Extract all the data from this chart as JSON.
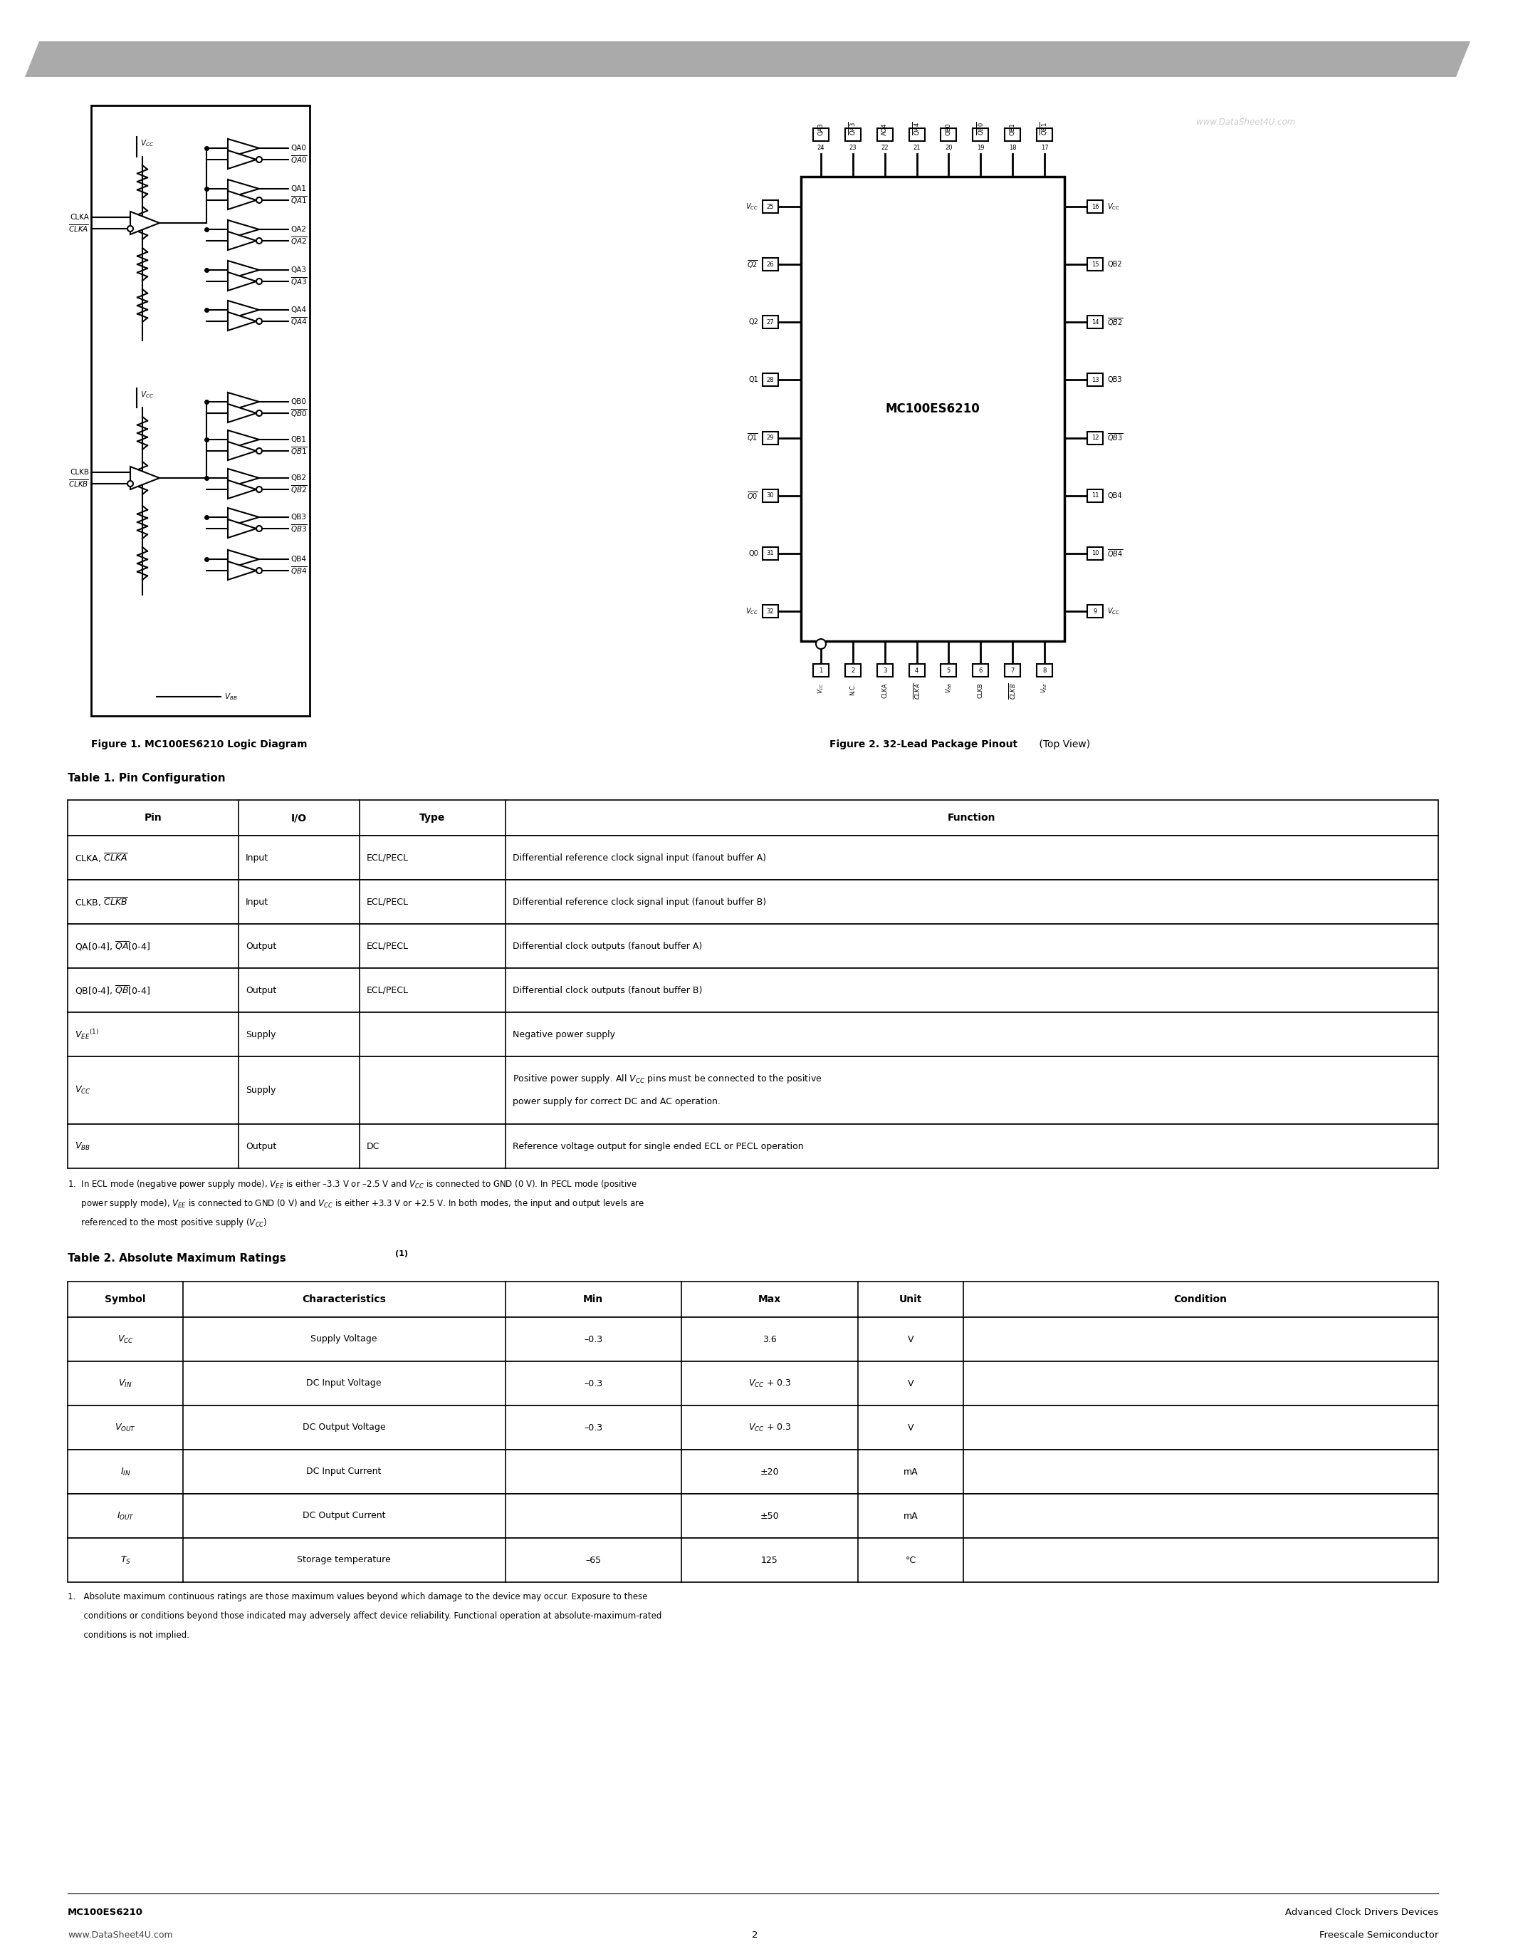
{
  "page_bg": "#ffffff",
  "watermark": "www.DataSheet4U.com",
  "fig1_caption": "Figure 1. MC100ES6210 Logic Diagram",
  "fig2_caption_bold": "Figure 2. 32-Lead Package Pinout",
  "fig2_caption_normal": " (Top View)",
  "table1_title": "Table 1. Pin Configuration",
  "table1_headers": [
    "Pin",
    "I/O",
    "Type",
    "Function"
  ],
  "table2_title": "Table 2. Absolute Maximum Ratings",
  "table2_title_super": "(1)",
  "table2_headers": [
    "Symbol",
    "Characteristics",
    "Min",
    "Max",
    "Unit",
    "Condition"
  ],
  "footer_left1": "MC100ES6210",
  "footer_left2": "www.DataSheet4U.com",
  "footer_right1": "Advanced Clock Drivers Devices",
  "footer_right2": "Freescale Semiconductor",
  "footer_page": "2"
}
